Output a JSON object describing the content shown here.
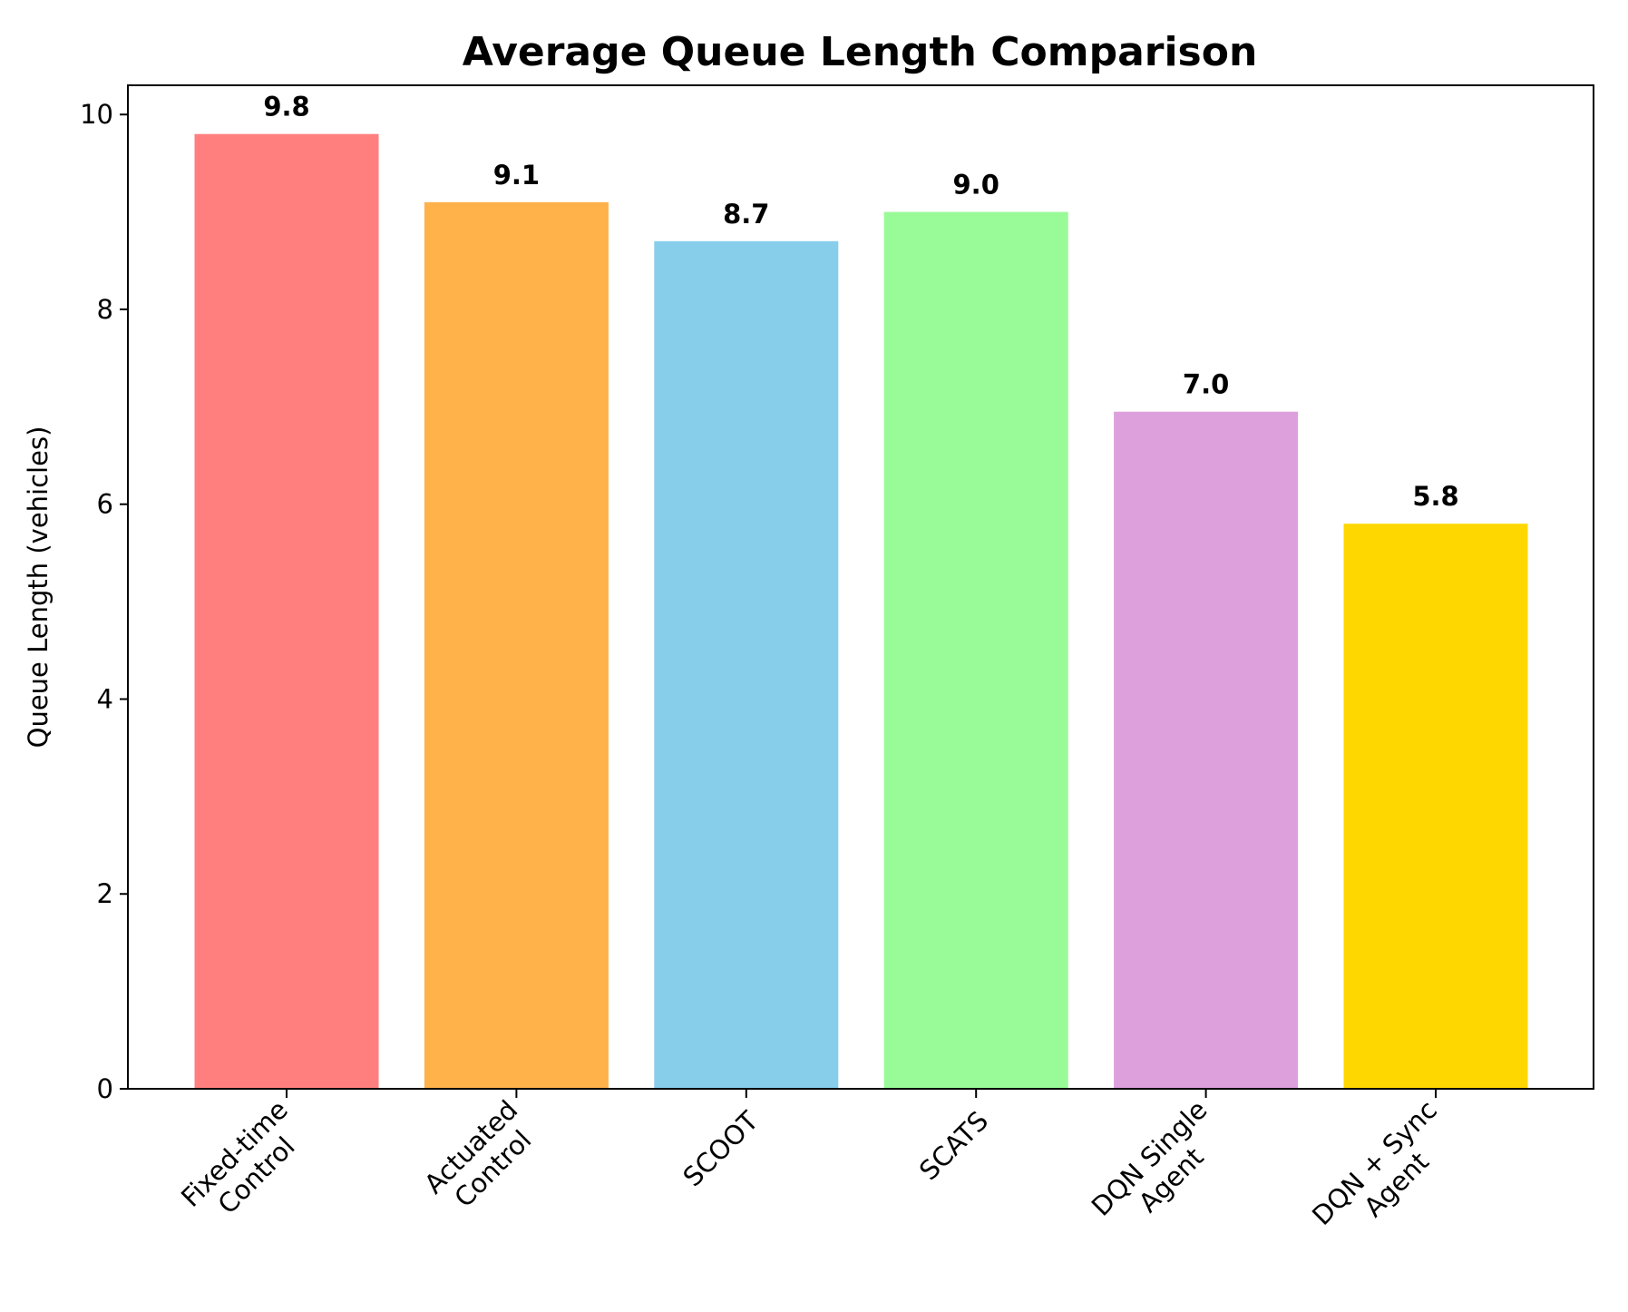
{
  "chart_data": {
    "type": "bar",
    "title": "Average Queue Length Comparison",
    "xlabel": "",
    "ylabel": "Queue Length (vehicles)",
    "ylim": [
      0,
      10.3
    ],
    "yticks": [
      0,
      2,
      4,
      6,
      8,
      10
    ],
    "grid": false,
    "legend": "none",
    "categories": [
      [
        "Fixed-time",
        "Control"
      ],
      [
        "Actuated",
        "Control"
      ],
      [
        "SCOOT"
      ],
      [
        "SCATS"
      ],
      [
        "DQN Single",
        "Agent"
      ],
      [
        "DQN + Sync",
        "Agent"
      ]
    ],
    "values": [
      9.8,
      9.1,
      8.7,
      9.0,
      6.95,
      5.8
    ],
    "value_labels": [
      "9.8",
      "9.1",
      "8.7",
      "9.0",
      "7.0",
      "5.8"
    ],
    "colors": [
      "#ff7f7f",
      "#ffb14a",
      "#87ceeb",
      "#99fb98",
      "#dda0dd",
      "#ffd700"
    ]
  }
}
